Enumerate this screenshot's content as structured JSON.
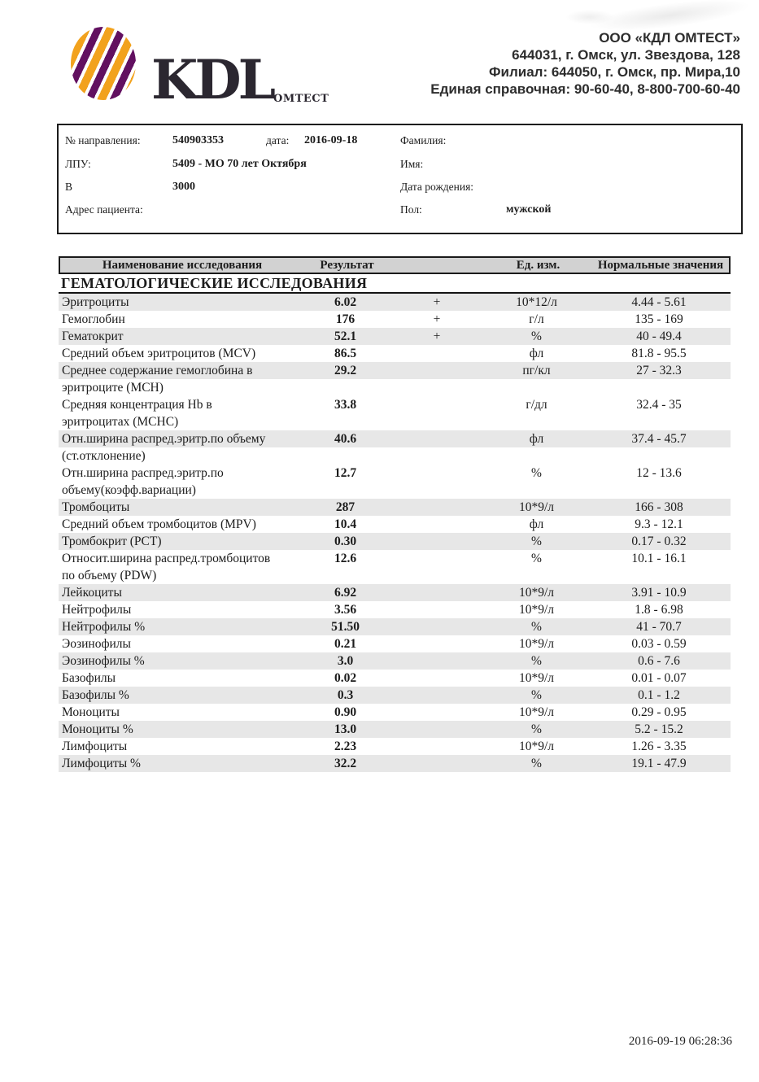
{
  "logo": {
    "wordmark": "KDL",
    "subtext": "ОМТЕСТ"
  },
  "company": {
    "lines": [
      "ООО «КДЛ ОМТЕСТ»",
      "644031,  г. Омск, ул. Звездова, 128",
      "Филиал: 644050,  г. Омск, пр. Мира,10",
      "Единая справочная: 90-60-40, 8-800-700-60-40"
    ]
  },
  "patient_box": {
    "ref_label": "№ направления:",
    "ref_value": "540903353",
    "date_label": "дата:",
    "date_value": "2016-09-18",
    "surname_label": "Фамилия:",
    "lpu_label": "ЛПУ:",
    "lpu_value": "5409 - МО 70 лет Октября",
    "firstname_label": "Имя:",
    "v_label": "В",
    "v_value": "3000",
    "birthdate_label": "Дата рождения:",
    "address_label": "Адрес пациента:",
    "sex_label": "Пол:",
    "sex_value": "мужской"
  },
  "table": {
    "columns": {
      "name": "Наименование исследования",
      "result": "Результат",
      "flag": "",
      "unit": "Ед. изм.",
      "range": "Нормальные значения"
    },
    "section": "ГЕМАТОЛОГИЧЕСКИЕ ИССЛЕДОВАНИЯ",
    "rows": [
      {
        "name": "Эритроциты",
        "result": "6.02",
        "flag": "+",
        "unit": "10*12/л",
        "range": "4.44 - 5.61"
      },
      {
        "name": "Гемоглобин",
        "result": "176",
        "flag": "+",
        "unit": "г/л",
        "range": "135 - 169"
      },
      {
        "name": "Гематокрит",
        "result": "52.1",
        "flag": "+",
        "unit": "%",
        "range": "40 - 49.4"
      },
      {
        "name": "Средний объем эритроцитов (MCV)",
        "result": "86.5",
        "flag": "",
        "unit": "фл",
        "range": "81.8 - 95.5"
      },
      {
        "name": "Среднее содержание гемоглобина в",
        "name2": "эритроците (MCH)",
        "result": "29.2",
        "flag": "",
        "unit": "пг/кл",
        "range": "27 - 32.3"
      },
      {
        "name": "Средняя концентрация Hb в",
        "name2": "эритроцитах (MCHC)",
        "result": "33.8",
        "flag": "",
        "unit": "г/дл",
        "range": "32.4 - 35"
      },
      {
        "name": "Отн.ширина распред.эритр.по объему",
        "name2": "(ст.отклонение)",
        "result": "40.6",
        "flag": "",
        "unit": "фл",
        "range": "37.4 - 45.7"
      },
      {
        "name": "Отн.ширина распред.эритр.по",
        "name2": "объему(коэфф.вариации)",
        "result": "12.7",
        "flag": "",
        "unit": "%",
        "range": "12 - 13.6"
      },
      {
        "name": "Тромбоциты",
        "result": "287",
        "flag": "",
        "unit": "10*9/л",
        "range": "166 - 308"
      },
      {
        "name": "Средний объем тромбоцитов (MPV)",
        "result": "10.4",
        "flag": "",
        "unit": "фл",
        "range": "9.3 - 12.1"
      },
      {
        "name": "Тромбокрит (PCT)",
        "result": "0.30",
        "flag": "",
        "unit": "%",
        "range": "0.17 - 0.32"
      },
      {
        "name": "Относит.ширина распред.тромбоцитов",
        "name2": "по объему (PDW)",
        "result": "12.6",
        "flag": "",
        "unit": "%",
        "range": "10.1 - 16.1"
      },
      {
        "name": "Лейкоциты",
        "result": "6.92",
        "flag": "",
        "unit": "10*9/л",
        "range": "3.91 - 10.9"
      },
      {
        "name": "Нейтрофилы",
        "result": "3.56",
        "flag": "",
        "unit": "10*9/л",
        "range": "1.8 - 6.98"
      },
      {
        "name": "Нейтрофилы %",
        "result": "51.50",
        "flag": "",
        "unit": "%",
        "range": "41 - 70.7"
      },
      {
        "name": "Эозинофилы",
        "result": "0.21",
        "flag": "",
        "unit": "10*9/л",
        "range": "0.03 - 0.59"
      },
      {
        "name": "Эозинофилы %",
        "result": "3.0",
        "flag": "",
        "unit": "%",
        "range": "0.6 - 7.6"
      },
      {
        "name": "Базофилы",
        "result": "0.02",
        "flag": "",
        "unit": "10*9/л",
        "range": "0.01 - 0.07"
      },
      {
        "name": "Базофилы %",
        "result": "0.3",
        "flag": "",
        "unit": "%",
        "range": "0.1 - 1.2"
      },
      {
        "name": "Моноциты",
        "result": "0.90",
        "flag": "",
        "unit": "10*9/л",
        "range": "0.29 - 0.95"
      },
      {
        "name": "Моноциты %",
        "result": "13.0",
        "flag": "",
        "unit": "%",
        "range": "5.2 - 15.2"
      },
      {
        "name": "Лимфоциты",
        "result": "2.23",
        "flag": "",
        "unit": "10*9/л",
        "range": "1.26 - 3.35"
      },
      {
        "name": "Лимфоциты %",
        "result": "32.2",
        "flag": "",
        "unit": "%",
        "range": "19.1 - 47.9"
      }
    ]
  },
  "footer": {
    "printed_at": "2016-09-19 06:28:36"
  },
  "colors": {
    "logo_orange": "#F2A21D",
    "logo_purple": "#621060",
    "ink": "#1c1c1c",
    "row_stripe": "#e7e7e7",
    "header_bar": "#d2d2d2"
  }
}
